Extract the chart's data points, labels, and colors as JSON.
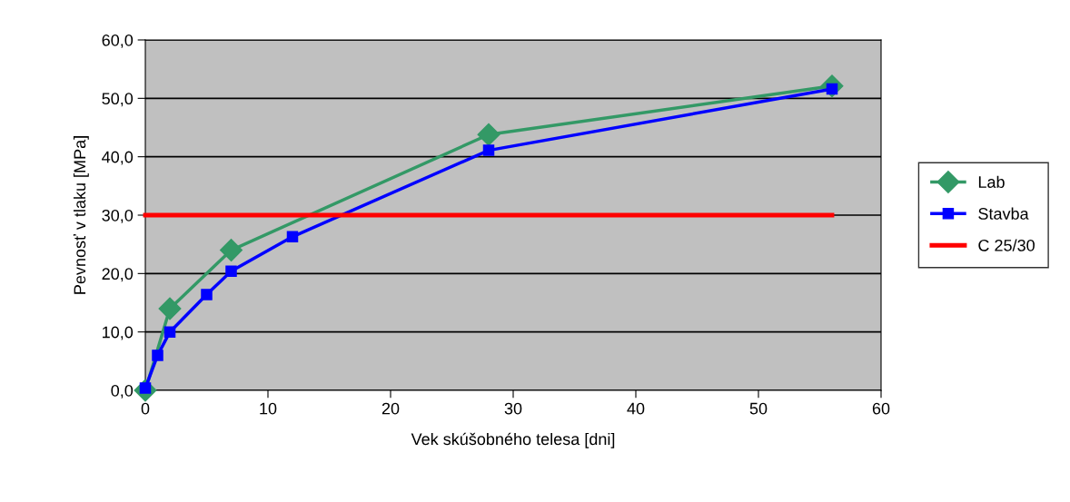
{
  "chart_data": {
    "type": "line",
    "xlabel": "Vek skúšobného telesa [dni]",
    "ylabel": "Pevnosť v tlaku [MPa]",
    "series": [
      {
        "name": "Lab",
        "color": "#339966",
        "marker": "diamond",
        "x": [
          0,
          2,
          7,
          28,
          56
        ],
        "values": [
          0.0,
          14.0,
          24.0,
          43.8,
          52.1
        ]
      },
      {
        "name": "Stavba",
        "color": "#0000ff",
        "marker": "square",
        "x": [
          0,
          1,
          2,
          5,
          7,
          12,
          28,
          56
        ],
        "values": [
          0.4,
          6.0,
          10.0,
          16.4,
          20.4,
          26.3,
          41.1,
          51.6
        ]
      },
      {
        "name": "C 25/30",
        "color": "#ff0000",
        "marker": "none",
        "x": [
          0,
          56
        ],
        "values": [
          30.0,
          30.0
        ]
      }
    ],
    "xlim": [
      0,
      60
    ],
    "xticks": [
      0,
      10,
      20,
      30,
      40,
      50,
      60
    ],
    "ylim": [
      0,
      60
    ],
    "yticks": [
      {
        "value": 0,
        "label": "0,0"
      },
      {
        "value": 10,
        "label": "10,0"
      },
      {
        "value": 20,
        "label": "20,0"
      },
      {
        "value": 30,
        "label": "30,0"
      },
      {
        "value": 40,
        "label": "40,0"
      },
      {
        "value": 50,
        "label": "50,0"
      },
      {
        "value": 60,
        "label": "60,0"
      }
    ],
    "grid": "y",
    "legend": "right",
    "line_style": "solid"
  }
}
